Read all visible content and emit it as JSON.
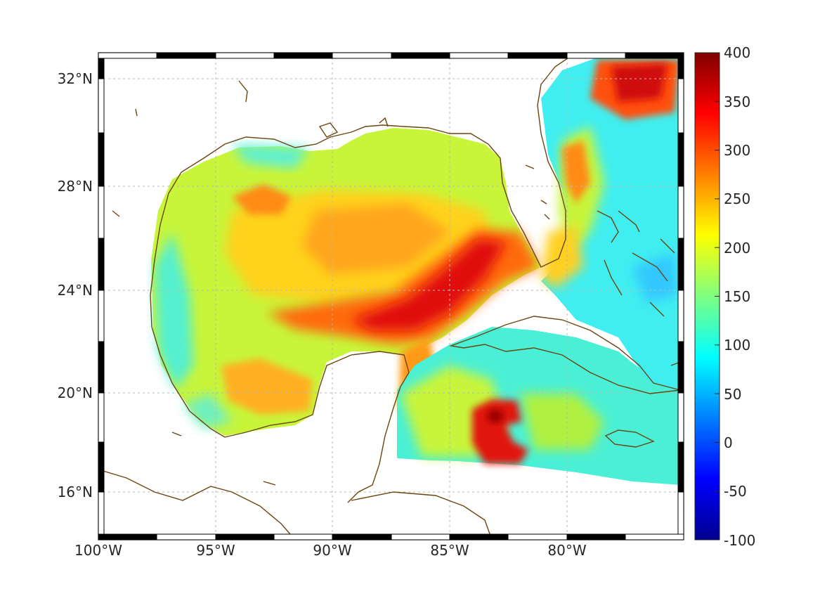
{
  "map": {
    "lon_range": [
      -100,
      -75
    ],
    "lat_range": [
      14.5,
      32.9
    ],
    "x_ticks": [
      {
        "lon": -100,
        "label": "100°W"
      },
      {
        "lon": -95,
        "label": "95°W"
      },
      {
        "lon": -90,
        "label": "90°W"
      },
      {
        "lon": -85,
        "label": "85°W"
      },
      {
        "lon": -80,
        "label": "80°W"
      }
    ],
    "y_ticks": [
      {
        "lat": 32,
        "label": "32°N"
      },
      {
        "lat": 28,
        "label": "28°N"
      },
      {
        "lat": 24,
        "label": "24°N"
      },
      {
        "lat": 20,
        "label": "20°N"
      },
      {
        "lat": 16,
        "label": "16°N"
      }
    ],
    "grid": true,
    "coastline_color": "#6b4510",
    "colormap": "jet"
  },
  "colorbar": {
    "range": [
      -100,
      400
    ],
    "ticks": [
      {
        "value": 400,
        "label": "400"
      },
      {
        "value": 350,
        "label": "350"
      },
      {
        "value": 300,
        "label": "300"
      },
      {
        "value": 250,
        "label": "250"
      },
      {
        "value": 200,
        "label": "200"
      },
      {
        "value": 150,
        "label": "150"
      },
      {
        "value": 100,
        "label": "100"
      },
      {
        "value": 50,
        "label": "50"
      },
      {
        "value": 0,
        "label": "0"
      },
      {
        "value": -50,
        "label": "-50"
      },
      {
        "value": -100,
        "label": "-100"
      }
    ]
  }
}
